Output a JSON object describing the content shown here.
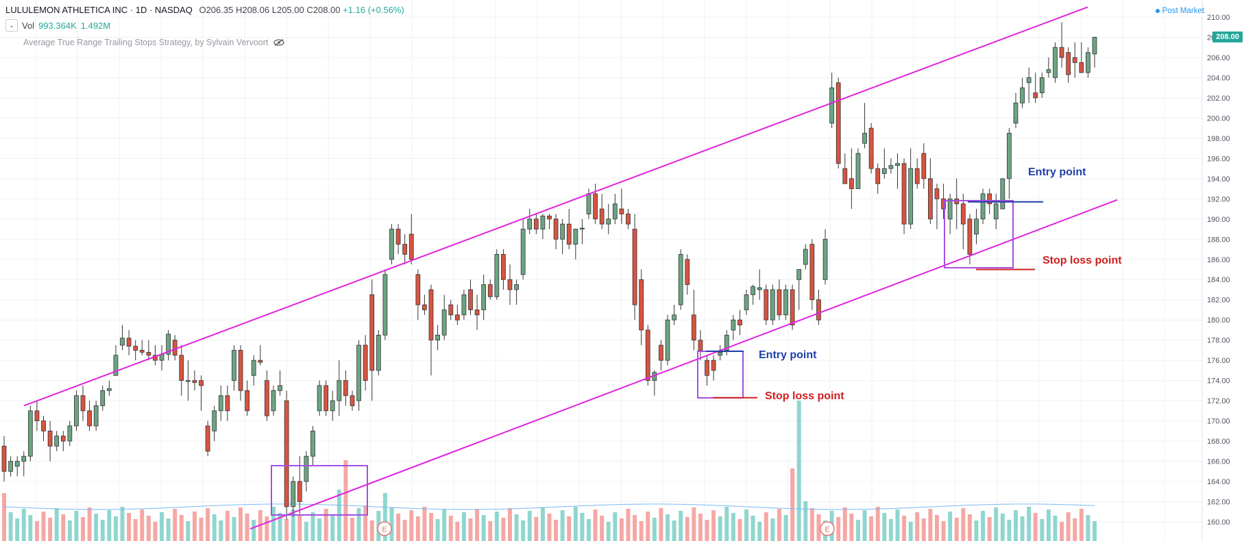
{
  "header": {
    "symbol": "LULULEMON ATHLETICA INC · 1D · NASDAQ",
    "open": "O206.35",
    "high": "H208.06",
    "low": "L205.00",
    "close": "C208.00",
    "change": "+1.16 (+0.56%)",
    "vol_label": "Vol",
    "vol_value": "993.364K",
    "vol_ma": "1.492M",
    "strategy": "Average True Range Trailing Stops Strategy, by Sylvain Vervoort",
    "post_market": "Post Market",
    "last_price": "208.00"
  },
  "colors": {
    "up": "#6ba583",
    "down": "#d75442",
    "vol_up": "#8fd6cf",
    "vol_down": "#f5a7a4",
    "channel": "#e022e0",
    "box": "#a64ee0",
    "entry": "#1e3fa8",
    "stop": "#d01e1e",
    "badge": "#26a69a"
  },
  "chart_data": {
    "type": "candlestick",
    "y_ticks": [
      "210.00",
      "208.00",
      "206.00",
      "204.00",
      "202.00",
      "200.00",
      "198.00",
      "196.00",
      "194.00",
      "192.00",
      "190.00",
      "188.00",
      "186.00",
      "184.00",
      "182.00",
      "180.00",
      "178.00",
      "176.00",
      "174.00",
      "172.00",
      "170.00",
      "168.00",
      "166.00",
      "164.00",
      "162.00",
      "160.00"
    ],
    "ylim": [
      159.3,
      210.8
    ],
    "candles": [
      [
        167.5,
        168.5,
        164.0,
        165.0
      ],
      [
        165.0,
        166.5,
        164.5,
        166.0
      ],
      [
        165.5,
        166.5,
        164.5,
        166.0
      ],
      [
        166.0,
        167.0,
        164.5,
        166.5
      ],
      [
        166.5,
        171.5,
        166.0,
        171.0
      ],
      [
        171.0,
        172.0,
        169.0,
        170.0
      ],
      [
        170.0,
        170.5,
        168.0,
        169.0
      ],
      [
        169.0,
        170.0,
        166.0,
        167.5
      ],
      [
        167.5,
        169.0,
        167.0,
        168.5
      ],
      [
        168.5,
        169.0,
        167.0,
        168.0
      ],
      [
        168.0,
        170.0,
        167.5,
        169.5
      ],
      [
        169.5,
        173.0,
        169.0,
        172.5
      ],
      [
        172.5,
        173.5,
        170.0,
        171.0
      ],
      [
        171.0,
        172.0,
        169.0,
        169.5
      ],
      [
        169.5,
        172.0,
        169.0,
        171.5
      ],
      [
        171.5,
        173.5,
        171.0,
        173.0
      ],
      [
        173.0,
        174.0,
        172.5,
        173.2
      ],
      [
        174.5,
        177.5,
        174.5,
        176.5
      ],
      [
        177.5,
        179.5,
        177.0,
        178.2
      ],
      [
        178.2,
        179.0,
        176.5,
        177.4
      ],
      [
        177.4,
        178.0,
        176.0,
        177.0
      ],
      [
        177.0,
        178.0,
        176.5,
        176.8
      ],
      [
        176.8,
        178.0,
        176.0,
        176.5
      ],
      [
        176.5,
        177.5,
        175.5,
        176.0
      ],
      [
        176.0,
        177.5,
        175.0,
        176.6
      ],
      [
        176.6,
        179.0,
        176.0,
        178.6
      ],
      [
        178.0,
        178.5,
        176.0,
        176.5
      ],
      [
        176.5,
        177.5,
        172.5,
        174.0
      ],
      [
        174.0,
        176.0,
        172.0,
        174.0
      ],
      [
        174.0,
        175.0,
        173.0,
        173.8
      ],
      [
        174.0,
        174.5,
        171.0,
        173.5
      ],
      [
        169.5,
        170.0,
        166.5,
        167.0
      ],
      [
        169.0,
        171.5,
        168.0,
        171.0
      ],
      [
        171.0,
        173.5,
        170.0,
        172.5
      ],
      [
        172.5,
        173.5,
        170.0,
        171.0
      ],
      [
        174.0,
        177.5,
        173.0,
        177.0
      ],
      [
        177.0,
        177.5,
        172.0,
        173.0
      ],
      [
        173.0,
        174.0,
        170.5,
        171.0
      ],
      [
        174.5,
        176.5,
        173.5,
        176.0
      ],
      [
        176.0,
        177.5,
        175.5,
        175.8
      ],
      [
        174.0,
        175.0,
        170.0,
        170.5
      ],
      [
        171.0,
        173.5,
        170.5,
        173.0
      ],
      [
        173.0,
        175.0,
        172.5,
        173.5
      ],
      [
        172.0,
        173.0,
        160.2,
        161.5
      ],
      [
        161.5,
        164.5,
        160.5,
        164.0
      ],
      [
        164.0,
        166.5,
        160.8,
        162.0
      ],
      [
        164.0,
        167.0,
        163.0,
        166.5
      ],
      [
        166.5,
        169.5,
        165.5,
        169.0
      ],
      [
        171.0,
        174.0,
        170.5,
        173.5
      ],
      [
        173.5,
        174.0,
        170.5,
        171.0
      ],
      [
        171.0,
        173.0,
        170.0,
        172.0
      ],
      [
        172.0,
        176.0,
        170.5,
        174.0
      ],
      [
        174.0,
        175.0,
        171.5,
        172.5
      ],
      [
        172.5,
        173.0,
        171.0,
        171.5
      ],
      [
        172.0,
        178.0,
        171.0,
        177.5
      ],
      [
        177.5,
        178.5,
        173.0,
        174.0
      ],
      [
        182.5,
        184.0,
        172.0,
        175.0
      ],
      [
        175.0,
        179.0,
        174.5,
        178.5
      ],
      [
        178.5,
        185.0,
        178.0,
        184.5
      ],
      [
        186.0,
        189.5,
        185.5,
        189.0
      ],
      [
        189.0,
        189.5,
        186.5,
        187.5
      ],
      [
        187.5,
        188.5,
        185.5,
        186.5
      ],
      [
        188.5,
        190.5,
        185.5,
        186.0
      ],
      [
        184.5,
        185.0,
        180.0,
        181.5
      ],
      [
        181.5,
        182.5,
        180.5,
        181.0
      ],
      [
        183.0,
        183.5,
        174.5,
        178.0
      ],
      [
        178.0,
        179.5,
        177.0,
        178.5
      ],
      [
        178.5,
        182.5,
        178.0,
        181.0
      ],
      [
        181.5,
        182.0,
        180.0,
        180.5
      ],
      [
        180.5,
        181.5,
        179.5,
        180.0
      ],
      [
        180.5,
        183.0,
        180.0,
        182.5
      ],
      [
        183.0,
        184.0,
        180.5,
        181.0
      ],
      [
        181.0,
        182.5,
        179.0,
        180.5
      ],
      [
        181.0,
        184.5,
        180.0,
        183.5
      ],
      [
        183.5,
        184.0,
        182.0,
        182.3
      ],
      [
        182.3,
        187.0,
        182.0,
        186.5
      ],
      [
        186.5,
        187.0,
        183.0,
        184.0
      ],
      [
        184.0,
        185.5,
        181.5,
        183.0
      ],
      [
        183.0,
        184.0,
        181.5,
        183.5
      ],
      [
        184.5,
        190.0,
        184.0,
        189.0
      ],
      [
        189.0,
        191.0,
        188.5,
        190.0
      ],
      [
        190.0,
        190.5,
        188.5,
        189.0
      ],
      [
        189.0,
        190.5,
        188.0,
        190.3
      ],
      [
        190.3,
        190.5,
        189.0,
        190.0
      ],
      [
        190.0,
        190.5,
        187.0,
        188.0
      ],
      [
        188.0,
        190.0,
        186.5,
        189.5
      ],
      [
        189.5,
        191.0,
        187.0,
        187.5
      ],
      [
        187.5,
        189.0,
        186.0,
        189.0
      ],
      [
        189.0,
        190.0,
        187.5,
        189.1
      ],
      [
        190.5,
        193.0,
        190.0,
        192.5
      ],
      [
        192.5,
        193.5,
        189.5,
        190.0
      ],
      [
        191.0,
        192.5,
        189.0,
        189.5
      ],
      [
        189.5,
        191.5,
        188.5,
        190.0
      ],
      [
        190.0,
        192.5,
        189.5,
        191.5
      ],
      [
        191.0,
        193.0,
        189.5,
        190.5
      ],
      [
        190.5,
        191.0,
        189.0,
        189.5
      ],
      [
        189.0,
        190.5,
        180.0,
        181.5
      ],
      [
        184.0,
        185.0,
        177.5,
        179.0
      ],
      [
        179.0,
        179.5,
        173.5,
        174.0
      ],
      [
        174.0,
        175.0,
        172.5,
        174.8
      ],
      [
        177.5,
        178.0,
        175.0,
        176.0
      ],
      [
        176.0,
        180.5,
        175.5,
        180.0
      ],
      [
        180.0,
        181.5,
        179.5,
        180.5
      ],
      [
        181.5,
        187.0,
        181.0,
        186.5
      ],
      [
        186.0,
        186.5,
        182.5,
        183.5
      ],
      [
        180.5,
        183.0,
        177.0,
        178.0
      ],
      [
        178.0,
        179.0,
        176.0,
        177.0
      ],
      [
        176.0,
        176.5,
        173.5,
        174.5
      ],
      [
        176.0,
        176.5,
        174.0,
        175.0
      ],
      [
        176.5,
        177.5,
        176.0,
        176.8
      ],
      [
        177.0,
        179.0,
        176.5,
        178.5
      ],
      [
        179.0,
        180.5,
        178.0,
        180.0
      ],
      [
        180.0,
        181.0,
        178.5,
        179.5
      ],
      [
        181.0,
        183.0,
        180.5,
        182.5
      ],
      [
        182.5,
        183.5,
        181.5,
        183.3
      ],
      [
        183.0,
        185.0,
        182.0,
        183.2
      ],
      [
        183.0,
        183.5,
        179.5,
        180.0
      ],
      [
        180.0,
        183.5,
        179.5,
        183.0
      ],
      [
        183.0,
        184.0,
        180.0,
        180.5
      ],
      [
        180.5,
        183.5,
        180.0,
        183.0
      ],
      [
        183.0,
        183.5,
        179.0,
        179.5
      ],
      [
        184.0,
        185.0,
        181.0,
        185.0
      ],
      [
        185.5,
        187.5,
        185.0,
        187.0
      ],
      [
        187.5,
        188.0,
        181.0,
        182.0
      ],
      [
        182.0,
        183.0,
        179.5,
        180.0
      ],
      [
        184.0,
        189.0,
        183.5,
        188.0
      ],
      [
        199.5,
        204.5,
        199.0,
        203.0
      ],
      [
        203.5,
        204.0,
        195.0,
        195.5
      ],
      [
        195.0,
        196.5,
        194.0,
        193.5
      ],
      [
        194.0,
        197.0,
        191.0,
        193.0
      ],
      [
        193.0,
        197.0,
        193.5,
        196.5
      ],
      [
        197.5,
        201.5,
        197.0,
        198.5
      ],
      [
        199.0,
        199.5,
        194.5,
        195.0
      ],
      [
        195.0,
        195.5,
        192.5,
        193.5
      ],
      [
        194.5,
        197.0,
        194.0,
        195.0
      ],
      [
        195.0,
        196.0,
        194.5,
        195.3
      ],
      [
        195.3,
        196.5,
        193.0,
        195.5
      ],
      [
        195.5,
        196.0,
        188.5,
        189.5
      ],
      [
        189.5,
        197.0,
        189.0,
        195.0
      ],
      [
        195.0,
        196.0,
        193.0,
        193.5
      ],
      [
        196.5,
        197.5,
        193.0,
        194.0
      ],
      [
        194.0,
        196.0,
        189.5,
        190.0
      ],
      [
        193.0,
        193.5,
        189.0,
        192.0
      ],
      [
        192.0,
        193.5,
        190.0,
        191.0
      ],
      [
        190.0,
        192.5,
        188.5,
        192.0
      ],
      [
        192.0,
        194.0,
        189.0,
        191.5
      ],
      [
        191.5,
        192.5,
        187.0,
        189.5
      ],
      [
        190.0,
        190.5,
        185.5,
        186.5
      ],
      [
        188.5,
        191.0,
        187.5,
        190.0
      ],
      [
        190.0,
        193.0,
        189.5,
        192.5
      ],
      [
        192.5,
        193.0,
        190.5,
        191.5
      ],
      [
        190.0,
        192.5,
        189.0,
        191.5
      ],
      [
        191.0,
        193.5,
        191.0,
        194.0
      ],
      [
        194.0,
        199.0,
        192.0,
        198.5
      ],
      [
        199.5,
        202.5,
        199.0,
        201.5
      ],
      [
        201.5,
        204.0,
        201.0,
        203.0
      ],
      [
        203.5,
        205.0,
        201.5,
        204.0
      ],
      [
        202.5,
        204.5,
        201.5,
        202.0
      ],
      [
        202.5,
        204.5,
        202.0,
        204.0
      ],
      [
        204.5,
        206.0,
        204.0,
        204.8
      ],
      [
        204.0,
        207.5,
        203.5,
        207.0
      ],
      [
        207.0,
        209.5,
        205.0,
        206.0
      ],
      [
        206.5,
        207.0,
        203.5,
        204.3
      ],
      [
        206.0,
        207.5,
        204.0,
        205.5
      ],
      [
        205.5,
        207.5,
        205.0,
        204.5
      ],
      [
        204.5,
        207.0,
        204.0,
        206.5
      ],
      [
        206.35,
        208.06,
        205.0,
        208.0
      ]
    ],
    "volume": [],
    "channel_upper": [
      [
        35,
        171.5
      ],
      [
        1587,
        211.0
      ]
    ],
    "channel_lower": [
      [
        365,
        159.3
      ],
      [
        1630,
        191.9
      ]
    ],
    "annotations": [
      {
        "label": "Entry point",
        "price": 176.9
      },
      {
        "label": "Stop loss point",
        "price": 172.3
      },
      {
        "label": "Entry point",
        "price": 191.7
      },
      {
        "label": "Stop loss point",
        "price": 185.0
      }
    ],
    "earnings_markers": [
      "E",
      "E"
    ]
  }
}
